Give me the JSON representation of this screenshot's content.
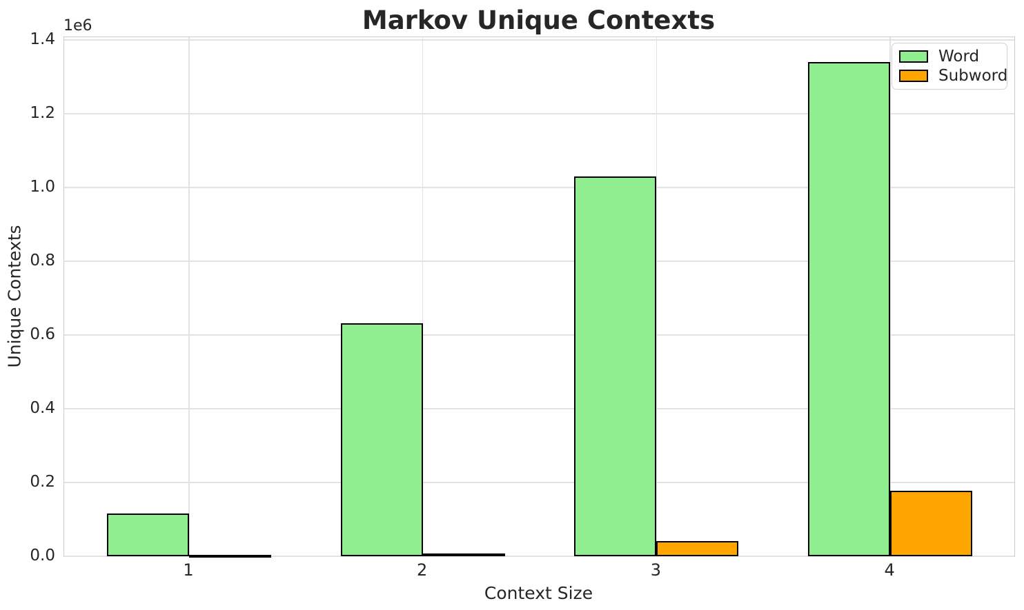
{
  "title": "Markov Unique Contexts",
  "chart_data": {
    "type": "bar",
    "title": "Markov Unique Contexts",
    "xlabel": "Context Size",
    "ylabel": "Unique Contexts",
    "y_scale_offset_label": "1e6",
    "categories": [
      "1",
      "2",
      "3",
      "4"
    ],
    "series": [
      {
        "name": "Word",
        "color": "#90EE90",
        "values": [
          115000,
          632000,
          1030000,
          1340000
        ]
      },
      {
        "name": "Subword",
        "color": "#FFA500",
        "values": [
          2000,
          8000,
          42000,
          178000
        ]
      }
    ],
    "bar_edge_color": "#000000",
    "ytick_labels": [
      "0.0",
      "0.2",
      "0.4",
      "0.6",
      "0.8",
      "1.0",
      "1.2",
      "1.4"
    ],
    "ytick_values": [
      0,
      200000,
      400000,
      600000,
      800000,
      1000000,
      1200000,
      1400000
    ],
    "ylim": [
      0,
      1407500
    ],
    "grid": "both",
    "grid_color": "#e2e2e2",
    "spine_color": "#cccccc",
    "text_color": "#262626",
    "legend": {
      "position": "upper right",
      "entries": [
        "Word",
        "Subword"
      ]
    }
  }
}
